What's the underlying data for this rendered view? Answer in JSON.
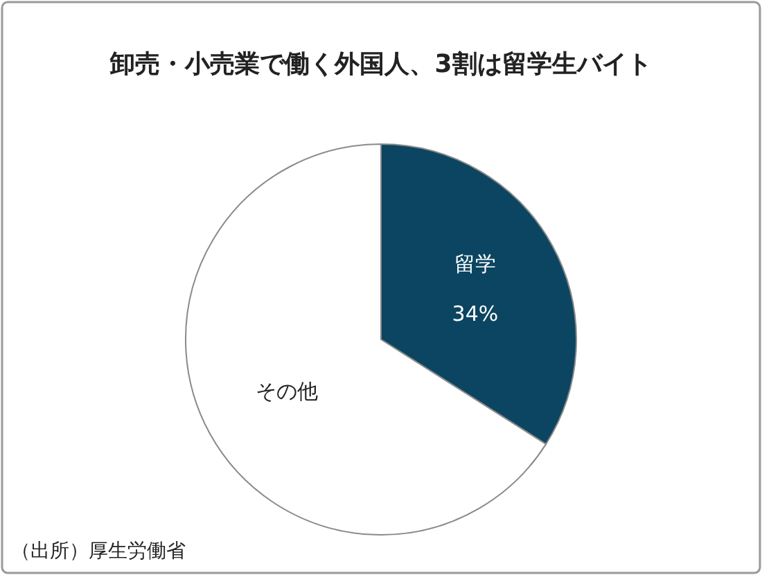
{
  "chart_data": {
    "type": "pie",
    "title": "卸売・小売業で働く外国人、3割は留学生バイト",
    "categories": [
      "留学",
      "その他"
    ],
    "values": [
      34,
      66
    ],
    "colors": [
      "#0b4561",
      "#ffffff"
    ],
    "value_labels": [
      "34%",
      null
    ],
    "annotations": [
      "（出所）厚生労働省"
    ]
  }
}
